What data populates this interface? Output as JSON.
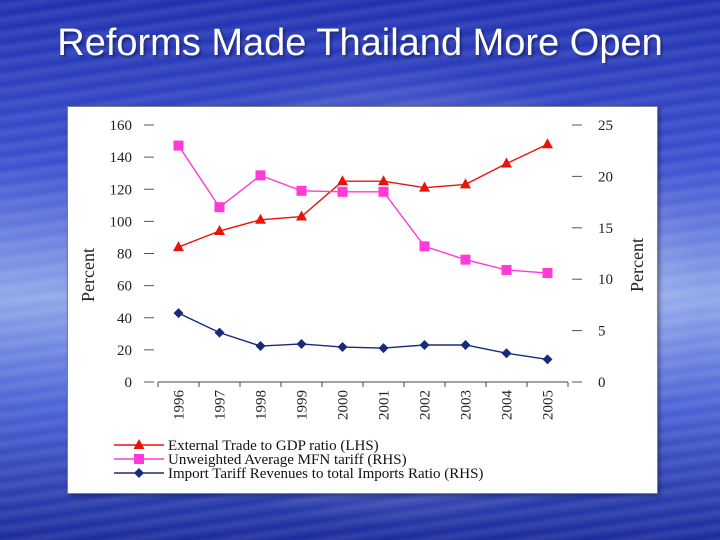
{
  "slide": {
    "title": "Reforms Made Thailand More Open"
  },
  "chart_data": {
    "type": "line",
    "title": "",
    "x": [
      "1996",
      "1997",
      "1998",
      "1999",
      "2000",
      "2001",
      "2002",
      "2003",
      "2004",
      "2005"
    ],
    "y_left": {
      "label": "Percent",
      "ticks": [
        "0",
        "20",
        "40",
        "60",
        "80",
        "100",
        "120",
        "140",
        "160"
      ],
      "lim": [
        0,
        160
      ]
    },
    "y_right": {
      "label": "Percent",
      "ticks": [
        "0",
        "5",
        "10",
        "15",
        "20",
        "25"
      ],
      "lim": [
        0,
        25
      ]
    },
    "grid": false,
    "legend_position": "bottom",
    "series": [
      {
        "name": "External Trade to GDP ratio (LHS)",
        "axis": "left",
        "marker": "triangle",
        "color": "#e8140c",
        "values": [
          84,
          94,
          101,
          103,
          125,
          125,
          121,
          123,
          136,
          148
        ]
      },
      {
        "name": "Unweighted Average MFN tariff (RHS)",
        "axis": "right",
        "marker": "square",
        "color": "#ff3ad6",
        "values": [
          23.0,
          17.0,
          20.1,
          18.6,
          18.5,
          18.5,
          13.2,
          11.9,
          10.9,
          10.6
        ]
      },
      {
        "name": "Import Tariff Revenues to total Imports Ratio (RHS)",
        "axis": "right",
        "marker": "diamond",
        "color": "#1a2a7a",
        "values": [
          6.7,
          4.8,
          3.5,
          3.7,
          3.4,
          3.3,
          3.6,
          3.6,
          2.8,
          2.2
        ]
      }
    ]
  }
}
